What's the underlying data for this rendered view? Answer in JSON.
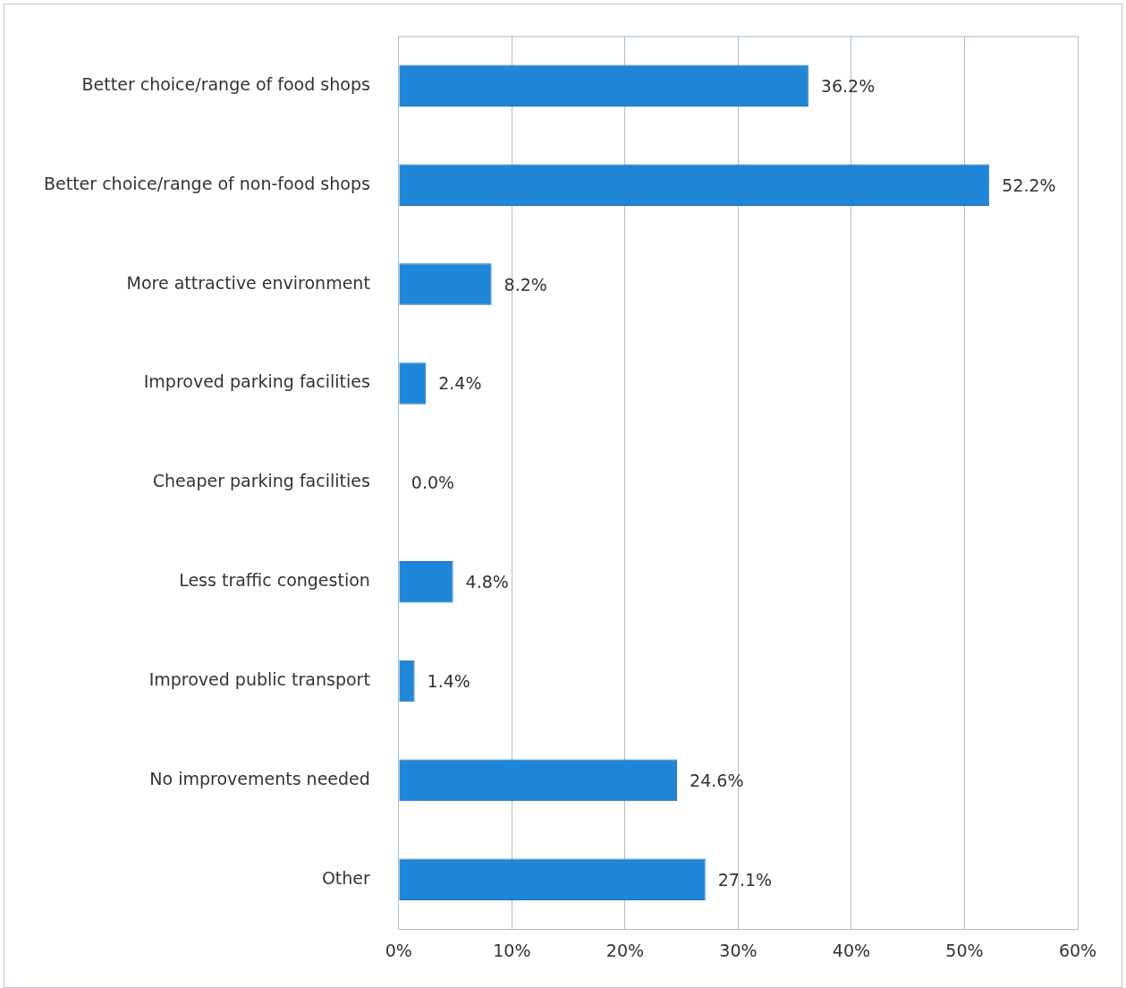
{
  "chart_data": {
    "type": "bar",
    "orientation": "horizontal",
    "categories": [
      "Better choice/range of food shops",
      "Better choice/range of non-food shops",
      "More attractive environment",
      "Improved parking facilities",
      "Cheaper parking facilities",
      "Less traffic congestion",
      "Improved public transport",
      "No improvements needed",
      "Other"
    ],
    "values": [
      36.2,
      52.2,
      8.2,
      2.4,
      0.0,
      4.8,
      1.4,
      24.6,
      27.1
    ],
    "value_labels": [
      "36.2%",
      "52.2%",
      "8.2%",
      "2.4%",
      "0.0%",
      "4.8%",
      "1.4%",
      "24.6%",
      "27.1%"
    ],
    "color": "#1f86d8",
    "xlim": [
      0,
      60
    ],
    "xticks": [
      {
        "value": 0,
        "label": "0%"
      },
      {
        "value": 10,
        "label": "10%"
      },
      {
        "value": 20,
        "label": "20%"
      },
      {
        "value": 30,
        "label": "30%"
      },
      {
        "value": 40,
        "label": "40%"
      },
      {
        "value": 50,
        "label": "50%"
      },
      {
        "value": 60,
        "label": "60%"
      }
    ],
    "grid": "x"
  }
}
